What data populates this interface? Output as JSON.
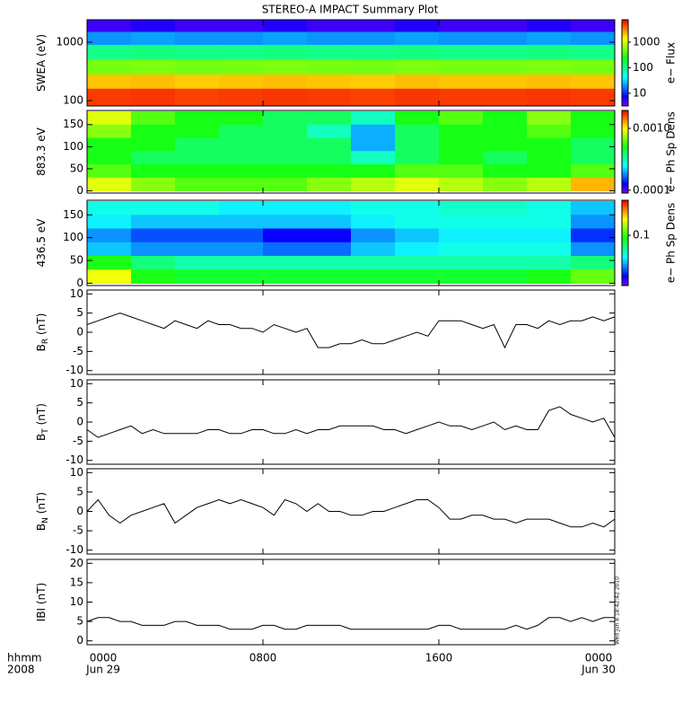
{
  "title": "STEREO-A IMPACT Summary Plot",
  "xaxis": {
    "xlim": [
      0,
      24
    ],
    "xticks": [
      {
        "value": 0,
        "label": "0000"
      },
      {
        "value": 8,
        "label": "0800"
      },
      {
        "value": 16,
        "label": "1600"
      },
      {
        "value": 24,
        "label": "0000"
      }
    ],
    "date_labels": [
      {
        "value": 0,
        "label": "Jun 29"
      },
      {
        "value": 24,
        "label": "Jun 30"
      }
    ],
    "unit_label": "hhmm",
    "year_label": "2008"
  },
  "footer": "Wed Jun  8 18:42:42 2010",
  "chart_data": [
    {
      "type": "spectrogram",
      "ylabel": "SWEA (eV)",
      "ylog": true,
      "ylim": [
        81,
        2420
      ],
      "yticks": [
        100,
        1000
      ],
      "x_edges": [
        0,
        2,
        4,
        6,
        8,
        10,
        12,
        14,
        16,
        18,
        20,
        22,
        24
      ],
      "y_edges": [
        2420,
        1500,
        900,
        500,
        280,
        160,
        81
      ],
      "values": [
        [
          5,
          6,
          5,
          5,
          6,
          5,
          5,
          6,
          5,
          5,
          6,
          5
        ],
        [
          20,
          22,
          20,
          20,
          22,
          20,
          20,
          22,
          20,
          20,
          22,
          20
        ],
        [
          100,
          110,
          100,
          100,
          110,
          100,
          100,
          110,
          100,
          100,
          110,
          100
        ],
        [
          500,
          520,
          480,
          500,
          520,
          500,
          480,
          520,
          500,
          500,
          520,
          500
        ],
        [
          2000,
          2100,
          1900,
          2000,
          2100,
          2000,
          1900,
          2100,
          2000,
          2000,
          2100,
          2000
        ],
        [
          5000,
          5200,
          4800,
          5000,
          5200,
          5000,
          4800,
          5200,
          5000,
          5000,
          5200,
          5000
        ]
      ],
      "colorbar": {
        "label": "e− Flux",
        "clim": [
          3.2,
          7500
        ],
        "log": true,
        "ticks": [
          10,
          100,
          1000
        ]
      }
    },
    {
      "type": "spectrogram",
      "ylabel": "883.3 eV",
      "ylog": false,
      "ylim": [
        -5,
        182
      ],
      "yticks": [
        0,
        50,
        100,
        150
      ],
      "x_edges": [
        0,
        2,
        4,
        6,
        8,
        10,
        12,
        14,
        16,
        18,
        20,
        22,
        24
      ],
      "y_edges": [
        180,
        150,
        120,
        90,
        60,
        30,
        0
      ],
      "values": [
        [
          0.0009,
          0.0006,
          0.0005,
          0.0005,
          0.0004,
          0.0004,
          0.0003,
          0.0005,
          0.0006,
          0.0005,
          0.0007,
          0.0005
        ],
        [
          0.0007,
          0.0005,
          0.0005,
          0.0004,
          0.0004,
          0.0003,
          0.0002,
          0.0004,
          0.0005,
          0.0005,
          0.0006,
          0.0005
        ],
        [
          0.0005,
          0.0005,
          0.0004,
          0.0004,
          0.0004,
          0.0004,
          0.0002,
          0.0004,
          0.0005,
          0.0005,
          0.0005,
          0.0004
        ],
        [
          0.0005,
          0.0004,
          0.0004,
          0.0004,
          0.0004,
          0.0004,
          0.0003,
          0.0004,
          0.0005,
          0.0004,
          0.0005,
          0.0004
        ],
        [
          0.0006,
          0.0005,
          0.0005,
          0.0005,
          0.0005,
          0.0005,
          0.0005,
          0.0006,
          0.0006,
          0.0005,
          0.0005,
          0.0006
        ],
        [
          0.0009,
          0.0007,
          0.0006,
          0.0006,
          0.0006,
          0.0007,
          0.0008,
          0.0009,
          0.0008,
          0.0007,
          0.0008,
          0.0012
        ]
      ],
      "colorbar": {
        "label": "e− Ph Sp Dens",
        "clim": [
          9e-05,
          0.00195
        ],
        "log": true,
        "ticks": [
          {
            "value": 0.001,
            "label": "0.0010"
          },
          0.0001
        ]
      }
    },
    {
      "type": "spectrogram",
      "ylabel": "436.5 eV",
      "ylog": false,
      "ylim": [
        -5,
        182
      ],
      "yticks": [
        0,
        50,
        100,
        150
      ],
      "x_edges": [
        0,
        2,
        4,
        6,
        8,
        10,
        12,
        14,
        16,
        18,
        20,
        22,
        24
      ],
      "y_edges": [
        180,
        150,
        120,
        90,
        60,
        30,
        0
      ],
      "values": [
        [
          0.04,
          0.04,
          0.04,
          0.035,
          0.035,
          0.035,
          0.04,
          0.04,
          0.045,
          0.045,
          0.04,
          0.03
        ],
        [
          0.035,
          0.03,
          0.03,
          0.03,
          0.03,
          0.03,
          0.035,
          0.04,
          0.04,
          0.04,
          0.04,
          0.025
        ],
        [
          0.025,
          0.02,
          0.02,
          0.02,
          0.015,
          0.015,
          0.025,
          0.03,
          0.035,
          0.035,
          0.035,
          0.018
        ],
        [
          0.03,
          0.025,
          0.025,
          0.025,
          0.022,
          0.022,
          0.03,
          0.035,
          0.04,
          0.04,
          0.04,
          0.025
        ],
        [
          0.09,
          0.06,
          0.05,
          0.05,
          0.05,
          0.05,
          0.05,
          0.05,
          0.05,
          0.05,
          0.05,
          0.06
        ],
        [
          0.2,
          0.09,
          0.08,
          0.08,
          0.08,
          0.08,
          0.08,
          0.08,
          0.08,
          0.08,
          0.09,
          0.12
        ]
      ],
      "colorbar": {
        "label": "e− Ph Sp Dens",
        "clim": [
          0.01,
          0.5
        ],
        "log": true,
        "ticks": [
          0.1
        ]
      }
    },
    {
      "type": "line",
      "ylabel": "B",
      "ylabel_sub": "R",
      "ylabel_unit": "(nT)",
      "ylim": [
        -11,
        11
      ],
      "yticks": [
        -10,
        -5,
        0,
        5,
        10
      ],
      "color": "#000000",
      "x": [
        0,
        0.5,
        1,
        1.5,
        2,
        2.5,
        3,
        3.5,
        4,
        4.5,
        5,
        5.5,
        6,
        6.5,
        7,
        7.5,
        8,
        8.5,
        9,
        9.5,
        10,
        10.5,
        11,
        11.5,
        12,
        12.5,
        13,
        13.5,
        14,
        14.5,
        15,
        15.5,
        16,
        16.5,
        17,
        17.5,
        18,
        18.5,
        19,
        19.5,
        20,
        20.5,
        21,
        21.5,
        22,
        22.5,
        23,
        23.5,
        24
      ],
      "values": [
        2,
        3,
        4,
        5,
        4,
        3,
        2,
        1,
        3,
        2,
        1,
        3,
        2,
        2,
        1,
        1,
        0,
        2,
        1,
        0,
        1,
        -4,
        -4,
        -3,
        -3,
        -2,
        -3,
        -3,
        -2,
        -1,
        0,
        -1,
        3,
        3,
        3,
        2,
        1,
        2,
        -4,
        2,
        2,
        1,
        3,
        2,
        3,
        3,
        4,
        3,
        4
      ]
    },
    {
      "type": "line",
      "ylabel": "B",
      "ylabel_sub": "T",
      "ylabel_unit": "(nT)",
      "ylim": [
        -11,
        11
      ],
      "yticks": [
        -10,
        -5,
        0,
        5,
        10
      ],
      "color": "#000000",
      "x": [
        0,
        0.5,
        1,
        1.5,
        2,
        2.5,
        3,
        3.5,
        4,
        4.5,
        5,
        5.5,
        6,
        6.5,
        7,
        7.5,
        8,
        8.5,
        9,
        9.5,
        10,
        10.5,
        11,
        11.5,
        12,
        12.5,
        13,
        13.5,
        14,
        14.5,
        15,
        15.5,
        16,
        16.5,
        17,
        17.5,
        18,
        18.5,
        19,
        19.5,
        20,
        20.5,
        21,
        21.5,
        22,
        22.5,
        23,
        23.5,
        24
      ],
      "values": [
        -2,
        -4,
        -3,
        -2,
        -1,
        -3,
        -2,
        -3,
        -3,
        -3,
        -3,
        -2,
        -2,
        -3,
        -3,
        -2,
        -2,
        -3,
        -3,
        -2,
        -3,
        -2,
        -2,
        -1,
        -1,
        -1,
        -1,
        -2,
        -2,
        -3,
        -2,
        -1,
        0,
        -1,
        -1,
        -2,
        -1,
        0,
        -2,
        -1,
        -2,
        -2,
        3,
        4,
        2,
        1,
        0,
        1,
        -4
      ]
    },
    {
      "type": "line",
      "ylabel": "B",
      "ylabel_sub": "N",
      "ylabel_unit": "(nT)",
      "ylim": [
        -11,
        11
      ],
      "yticks": [
        -10,
        -5,
        0,
        5,
        10
      ],
      "color": "#000000",
      "x": [
        0,
        0.5,
        1,
        1.5,
        2,
        2.5,
        3,
        3.5,
        4,
        4.5,
        5,
        5.5,
        6,
        6.5,
        7,
        7.5,
        8,
        8.5,
        9,
        9.5,
        10,
        10.5,
        11,
        11.5,
        12,
        12.5,
        13,
        13.5,
        14,
        14.5,
        15,
        15.5,
        16,
        16.5,
        17,
        17.5,
        18,
        18.5,
        19,
        19.5,
        20,
        20.5,
        21,
        21.5,
        22,
        22.5,
        23,
        23.5,
        24
      ],
      "values": [
        0,
        3,
        -1,
        -3,
        -1,
        0,
        1,
        2,
        -3,
        -1,
        1,
        2,
        3,
        2,
        3,
        2,
        1,
        -1,
        3,
        2,
        0,
        2,
        0,
        0,
        -1,
        -1,
        0,
        0,
        1,
        2,
        3,
        3,
        1,
        -2,
        -2,
        -1,
        -1,
        -2,
        -2,
        -3,
        -2,
        -2,
        -2,
        -3,
        -4,
        -4,
        -3,
        -4,
        -2
      ]
    },
    {
      "type": "line",
      "ylabel": "IBI (nT)",
      "ylim": [
        -1,
        21
      ],
      "yticks": [
        0,
        5,
        10,
        15,
        20
      ],
      "color": "#000000",
      "x": [
        0,
        0.5,
        1,
        1.5,
        2,
        2.5,
        3,
        3.5,
        4,
        4.5,
        5,
        5.5,
        6,
        6.5,
        7,
        7.5,
        8,
        8.5,
        9,
        9.5,
        10,
        10.5,
        11,
        11.5,
        12,
        12.5,
        13,
        13.5,
        14,
        14.5,
        15,
        15.5,
        16,
        16.5,
        17,
        17.5,
        18,
        18.5,
        19,
        19.5,
        20,
        20.5,
        21,
        21.5,
        22,
        22.5,
        23,
        23.5,
        24
      ],
      "values": [
        5,
        6,
        6,
        5,
        5,
        4,
        4,
        4,
        5,
        5,
        4,
        4,
        4,
        3,
        3,
        3,
        4,
        4,
        3,
        3,
        4,
        4,
        4,
        4,
        3,
        3,
        3,
        3,
        3,
        3,
        3,
        3,
        4,
        4,
        3,
        3,
        3,
        3,
        3,
        4,
        3,
        4,
        6,
        6,
        5,
        6,
        5,
        6,
        6
      ]
    }
  ]
}
